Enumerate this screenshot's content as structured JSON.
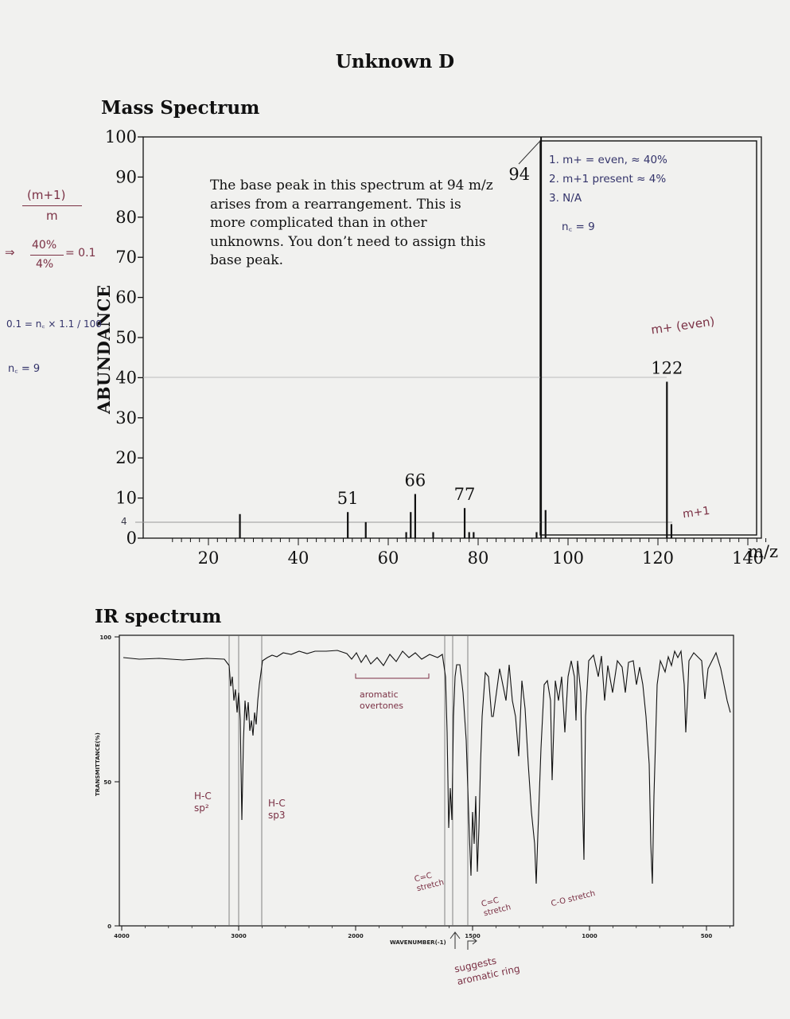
{
  "page": {
    "title": "Unknown D"
  },
  "mass_spectrum": {
    "title": "Mass Spectrum",
    "note": "The base peak in this spectrum at 94 m/z arises from a rearrangement. This is more complicated than in other unknowns. You don’t need to assign this base peak.",
    "chart_data": {
      "type": "bar",
      "ylabel": "ABUNDANCE",
      "xlabel": "m/z",
      "xlim": [
        12,
        144
      ],
      "ylim": [
        0,
        100
      ],
      "x_ticks": [
        20,
        40,
        60,
        80,
        100,
        120,
        140
      ],
      "y_ticks": [
        0,
        10,
        20,
        30,
        40,
        50,
        60,
        70,
        80,
        90,
        100
      ],
      "peaks": [
        {
          "mz": 27,
          "abundance": 6
        },
        {
          "mz": 51,
          "abundance": 6.5,
          "label": "51"
        },
        {
          "mz": 55,
          "abundance": 4
        },
        {
          "mz": 64,
          "abundance": 1.5
        },
        {
          "mz": 65,
          "abundance": 6.5
        },
        {
          "mz": 66,
          "abundance": 11,
          "label": "66"
        },
        {
          "mz": 70,
          "abundance": 1.5
        },
        {
          "mz": 77,
          "abundance": 7.5,
          "label": "77"
        },
        {
          "mz": 78,
          "abundance": 1.5
        },
        {
          "mz": 79,
          "abundance": 1.5
        },
        {
          "mz": 93,
          "abundance": 1.5
        },
        {
          "mz": 94,
          "abundance": 100,
          "label": "94"
        },
        {
          "mz": 95,
          "abundance": 7
        },
        {
          "mz": 122,
          "abundance": 39,
          "label": "122"
        },
        {
          "mz": 123,
          "abundance": 3.5
        }
      ]
    },
    "annotations": {
      "left_ratio_num": "(m+1)",
      "left_ratio_den": "m",
      "left_ratio_calc_arrow": "⇒",
      "left_ratio_calc_num": "40%",
      "left_ratio_calc_den": "4%",
      "left_ratio_calc_result": "= 0.1",
      "left_formula": "0.1 = n꜀ × 1.1 / 100",
      "left_nc": "n꜀ = 9",
      "left_axis_mark": "4",
      "right_list_1": "1. m+ = even, ≈ 40%",
      "right_list_2": "2. m+1 present ≈ 4%",
      "right_list_3": "3. N/A",
      "right_nc": "n꜀ = 9",
      "mplus_even": "m+ (even)",
      "mplus1": "m+1"
    }
  },
  "ir_spectrum": {
    "title": "IR spectrum",
    "chart_data": {
      "type": "line",
      "ylabel": "TRANSMITTANCE(%)",
      "xlabel": "WAVENUMBER(-1)",
      "x_ticks": [
        "4000",
        "3000",
        "2000",
        "1500",
        "1000",
        "500"
      ],
      "y_ticks": [
        "0",
        "50",
        "100"
      ],
      "xlim": [
        4000,
        400
      ],
      "ylim": [
        0,
        100
      ]
    },
    "annotations": {
      "aromatic_overtones": "aromatic overtones",
      "hc_sp2": "H-C sp²",
      "hc_sp3": "H-C sp3",
      "cc_stretch_1": "C=C stretch",
      "cc_stretch_2": "C=C stretch",
      "co_stretch": "C-O stretch",
      "suggests": "suggests aromatic ring"
    }
  }
}
